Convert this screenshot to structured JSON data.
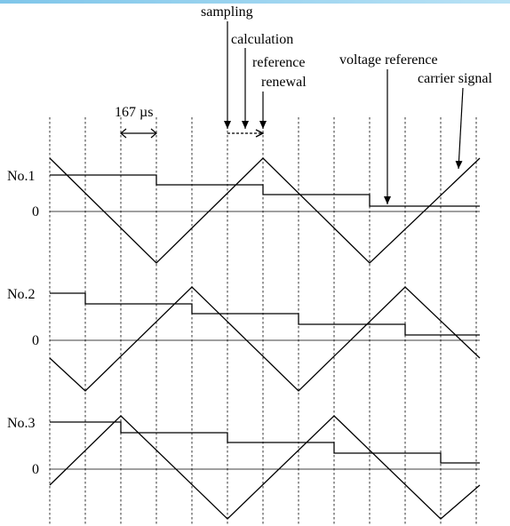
{
  "annotations": {
    "sampling": "sampling",
    "calculation": "calculation",
    "reference": "reference",
    "renewal": "renewal",
    "voltage_reference": "voltage reference",
    "carrier_signal": "carrier signal",
    "period": "167 µs"
  },
  "panels": [
    {
      "id": "No.1",
      "label": "No.1",
      "zero_label": "0",
      "carrier_start": "peak",
      "reference_levels": [
        0.85,
        0.73,
        0.45,
        0.15,
        0.15
      ],
      "reference_updates_at_sample": [
        0,
        2,
        4,
        6,
        8
      ]
    },
    {
      "id": "No.2",
      "label": "No.2",
      "zero_label": "0",
      "carrier_start": "mid-falling",
      "reference_levels": [
        0.8,
        0.62,
        0.45,
        0.25,
        0.1,
        -0.1
      ],
      "reference_updates_at_sample": [
        0,
        1,
        3,
        5,
        7,
        9
      ]
    },
    {
      "id": "No.3",
      "label": "No.3",
      "zero_label": "0",
      "carrier_start": "mid-rising",
      "reference_levels": [
        0.78,
        0.6,
        0.45,
        0.25,
        0.05,
        -0.1
      ],
      "reference_updates_at_sample": [
        0,
        2,
        4,
        6,
        8,
        10
      ]
    }
  ]
}
